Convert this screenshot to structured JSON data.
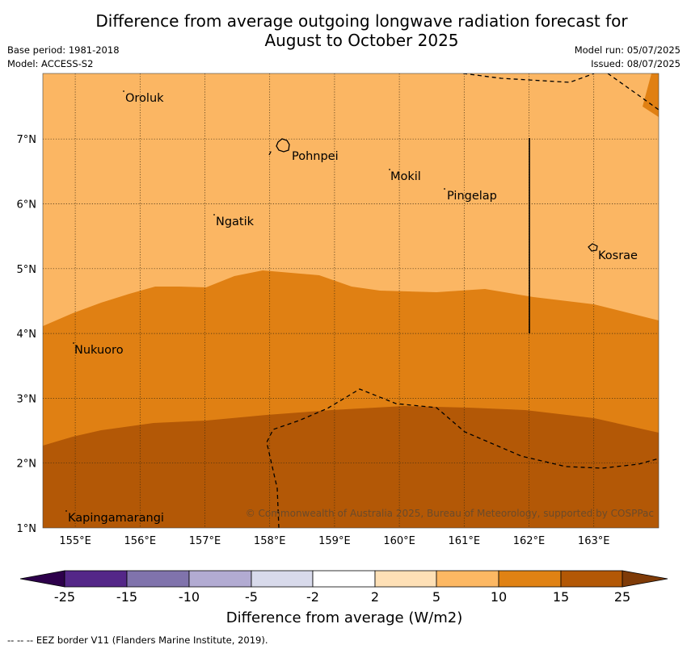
{
  "title": "Difference from average outgoing longwave radiation forecast for August to October 2025",
  "title_lines": [
    "Difference from average outgoing longwave radiation forecast for",
    "August to October 2025"
  ],
  "meta": {
    "base_period": "Base period: 1981-2018",
    "model": "Model: ACCESS-S2",
    "model_run": "Model run: 05/07/2025",
    "issued": "Issued: 08/07/2025"
  },
  "map": {
    "lon_range": [
      154.5,
      164.0
    ],
    "lat_range": [
      1.0,
      8.0
    ],
    "lon_ticks": [
      "155°E",
      "156°E",
      "157°E",
      "158°E",
      "159°E",
      "160°E",
      "161°E",
      "162°E",
      "163°E"
    ],
    "lat_ticks": [
      "1°N",
      "2°N",
      "3°N",
      "4°N",
      "5°N",
      "6°N",
      "7°N"
    ],
    "places": [
      {
        "name": "Oroluk"
      },
      {
        "name": "Pohnpei"
      },
      {
        "name": "Mokil"
      },
      {
        "name": "Pingelap"
      },
      {
        "name": "Ngatik"
      },
      {
        "name": "Kosrae"
      },
      {
        "name": "Nukuoro"
      },
      {
        "name": "Kapingamarangi"
      }
    ],
    "copyright": "© Commonwealth of Australia 2025, Bureau of Meteorology, supported by COSPPac",
    "category_colors": {
      "5_to_10": "#fbb663",
      "10_to_15": "#e08013",
      "15_to_25": "#b35806"
    }
  },
  "colorbar": {
    "labels": [
      "-25",
      "-15",
      "-10",
      "-5",
      "-2",
      "2",
      "5",
      "10",
      "15",
      "25"
    ],
    "colors": [
      "#2d004b",
      "#542788",
      "#8073ac",
      "#b2abd2",
      "#d8daeb",
      "#ffffff",
      "#fee0b6",
      "#fdb863",
      "#e08214",
      "#b35806",
      "#7f3b08"
    ],
    "title": "Difference from average (W/m2)"
  },
  "footnote": "--  --  -- EEZ border V11 (Flanders Marine Institute, 2019)."
}
